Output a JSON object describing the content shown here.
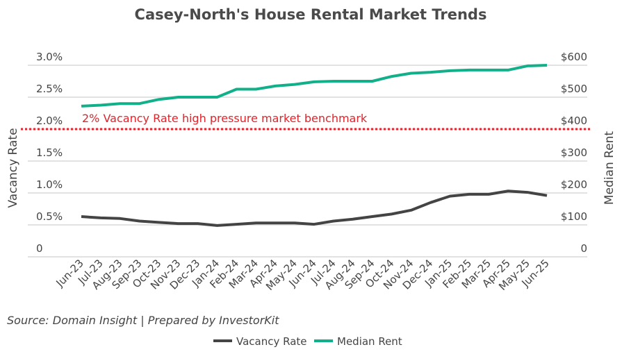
{
  "chart_data": {
    "type": "line",
    "title": "Casey-North's House Rental Market Trends",
    "categories": [
      "Jun-23",
      "Jul-23",
      "Aug-23",
      "Sep-23",
      "Oct-23",
      "Nov-23",
      "Dec-23",
      "Jan-24",
      "Feb-24",
      "Mar-24",
      "Apr-24",
      "May-24",
      "Jun-24",
      "Jul-24",
      "Aug-24",
      "Sep-24",
      "Oct-24",
      "Nov-24",
      "Dec-24",
      "Jan-25",
      "Feb-25",
      "Mar-25",
      "Apr-25",
      "May-25",
      "Jun-25"
    ],
    "series": [
      {
        "name": "Vacancy Rate",
        "axis": "left",
        "color": "#444444",
        "values": [
          0.63,
          0.61,
          0.6,
          0.56,
          0.54,
          0.52,
          0.52,
          0.49,
          0.51,
          0.53,
          0.53,
          0.53,
          0.51,
          0.56,
          0.59,
          0.63,
          0.67,
          0.73,
          0.85,
          0.95,
          0.98,
          0.98,
          1.03,
          1.01,
          0.96
        ]
      },
      {
        "name": "Median Rent",
        "axis": "right",
        "color": "#12b08a",
        "values": [
          472,
          475,
          480,
          480,
          493,
          500,
          500,
          500,
          525,
          525,
          535,
          540,
          548,
          550,
          550,
          550,
          565,
          575,
          578,
          583,
          585,
          585,
          585,
          598,
          600
        ]
      }
    ],
    "ylabel_left": "Vacancy Rate",
    "ylabel_right": "Median Rent",
    "ylim_left": [
      0,
      3.0
    ],
    "ylim_right": [
      0,
      600
    ],
    "yticks_left": [
      "0",
      "0.5%",
      "1.0%",
      "1.5%",
      "2.0%",
      "2.5%",
      "3.0%"
    ],
    "yticks_right": [
      "0",
      "$100",
      "$200",
      "$300",
      "$400",
      "$500",
      "$600"
    ],
    "benchmark": {
      "value": 2.0,
      "label": "2% Vacancy Rate high pressure market benchmark",
      "color": "#e0242b"
    },
    "grid": true,
    "legend_position": "bottom",
    "source": "Source: Domain Insight | Prepared by InvestorKit"
  }
}
